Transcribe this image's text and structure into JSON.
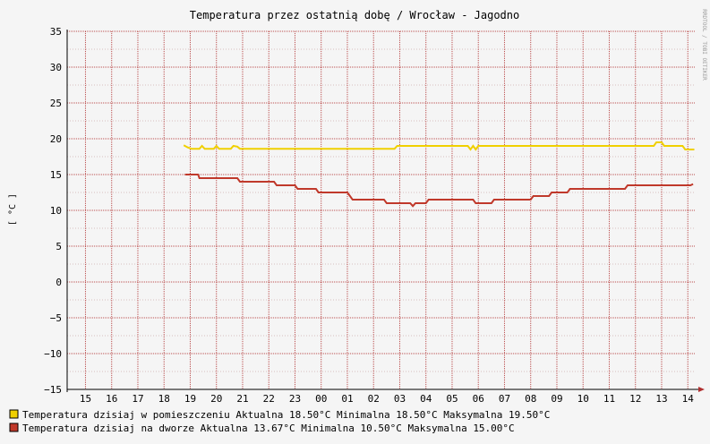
{
  "chart_data": {
    "type": "line",
    "title": "Temperatura przez ostatnią dobę / Wrocław - Jagodno",
    "ylabel": "[ °C ]",
    "watermark": "RRDTOOL / TOBI OETIKER",
    "ylim": [
      -15,
      35
    ],
    "yticks": [
      35,
      30,
      25,
      20,
      15,
      10,
      5,
      0,
      -5,
      -10,
      -15
    ],
    "ytick_labels": [
      "35",
      "30",
      "25",
      "20",
      "15",
      "10",
      "5",
      "0",
      "−5",
      "−10",
      "−15"
    ],
    "xlim": [
      14.3,
      38.3
    ],
    "xticks": [
      15,
      16,
      17,
      18,
      19,
      20,
      21,
      22,
      23,
      24,
      25,
      26,
      27,
      28,
      29,
      30,
      31,
      32,
      33,
      34,
      35,
      36,
      37,
      38
    ],
    "xtick_labels": [
      "15",
      "16",
      "17",
      "18",
      "19",
      "20",
      "21",
      "22",
      "23",
      "00",
      "01",
      "02",
      "03",
      "04",
      "05",
      "06",
      "07",
      "08",
      "09",
      "10",
      "11",
      "12",
      "13",
      "14"
    ],
    "grid": true,
    "series": [
      {
        "name": "Temperatura dzisiaj w pomieszczeniu",
        "color": "#f0d000",
        "points": [
          [
            18.75,
            19.1
          ],
          [
            18.9,
            18.8
          ],
          [
            19.05,
            18.6
          ],
          [
            19.35,
            18.6
          ],
          [
            19.45,
            19.0
          ],
          [
            19.55,
            18.6
          ],
          [
            19.9,
            18.6
          ],
          [
            20.0,
            19.0
          ],
          [
            20.1,
            18.6
          ],
          [
            20.55,
            18.6
          ],
          [
            20.65,
            19.0
          ],
          [
            20.8,
            18.9
          ],
          [
            20.9,
            18.6
          ],
          [
            26.8,
            18.6
          ],
          [
            26.9,
            19.0
          ],
          [
            29.6,
            19.0
          ],
          [
            29.7,
            18.5
          ],
          [
            29.8,
            19.0
          ],
          [
            29.9,
            18.5
          ],
          [
            30.0,
            19.0
          ],
          [
            36.7,
            19.0
          ],
          [
            36.8,
            19.5
          ],
          [
            37.0,
            19.5
          ],
          [
            37.1,
            19.0
          ],
          [
            37.8,
            19.0
          ],
          [
            37.9,
            18.5
          ],
          [
            38.25,
            18.5
          ]
        ]
      },
      {
        "name": "Temperatura dzisiaj na dworze",
        "color": "#c0392b",
        "points": [
          [
            18.8,
            15.0
          ],
          [
            19.3,
            15.0
          ],
          [
            19.35,
            14.5
          ],
          [
            20.8,
            14.5
          ],
          [
            20.9,
            14.0
          ],
          [
            22.2,
            14.0
          ],
          [
            22.3,
            13.5
          ],
          [
            23.0,
            13.5
          ],
          [
            23.1,
            13.0
          ],
          [
            23.8,
            13.0
          ],
          [
            23.9,
            12.5
          ],
          [
            25.0,
            12.5
          ],
          [
            25.1,
            12.0
          ],
          [
            25.2,
            11.5
          ],
          [
            26.4,
            11.5
          ],
          [
            26.5,
            11.0
          ],
          [
            27.4,
            11.0
          ],
          [
            27.5,
            10.6
          ],
          [
            27.6,
            11.0
          ],
          [
            28.0,
            11.0
          ],
          [
            28.1,
            11.5
          ],
          [
            29.8,
            11.5
          ],
          [
            29.9,
            11.0
          ],
          [
            30.5,
            11.0
          ],
          [
            30.6,
            11.5
          ],
          [
            32.0,
            11.5
          ],
          [
            32.1,
            12.0
          ],
          [
            32.7,
            12.0
          ],
          [
            32.8,
            12.5
          ],
          [
            33.4,
            12.5
          ],
          [
            33.5,
            13.0
          ],
          [
            35.6,
            13.0
          ],
          [
            35.7,
            13.5
          ],
          [
            38.1,
            13.5
          ],
          [
            38.2,
            13.67
          ]
        ]
      }
    ],
    "legend": [
      {
        "name": "Temperatura dzisiaj w pomieszczeniu",
        "color": "#f0d000",
        "text": "Aktualna 18.50°C  Minimalna 18.50°C  Maksymalna 19.50°C"
      },
      {
        "name": "Temperatura dzisiaj na dworze",
        "color": "#c0392b",
        "text": " Aktualna 13.67°C  Minimalna 10.50°C  Maksymalna 15.00°C"
      }
    ]
  }
}
